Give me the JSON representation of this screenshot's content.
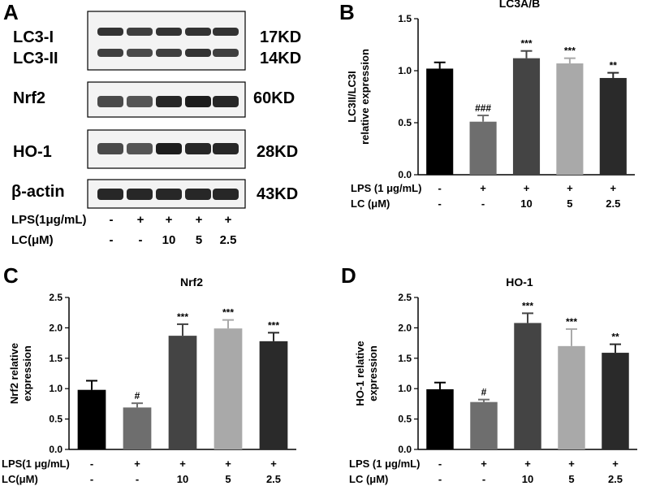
{
  "panels": {
    "a": "A",
    "b": "B",
    "c": "C",
    "d": "D"
  },
  "blots": {
    "rows": [
      {
        "label": "LC3-I",
        "kd": "17KD"
      },
      {
        "label": "LC3-II",
        "kd": "14KD"
      },
      {
        "label": "Nrf2",
        "kd": "60KD"
      },
      {
        "label": "HO-1",
        "kd": "28KD"
      },
      {
        "label": "β-actin",
        "kd": "43KD"
      }
    ],
    "lps_label": "LPS(1μg/mL)",
    "lc_label": "LC(μM)",
    "lps_values": [
      "-",
      "+",
      "+",
      "+",
      "+"
    ],
    "lc_values": [
      "-",
      "-",
      "10",
      "5",
      "2.5"
    ]
  },
  "chart_data": [
    {
      "type": "bar",
      "panel": "B",
      "title": "LC3A/B",
      "ylabel": "LC3II/LC3I\nrelative expression",
      "ylim": [
        0,
        1.5
      ],
      "yticks": [
        "0.0",
        "0.5",
        "1.0",
        "1.5"
      ],
      "categories": [
        "1",
        "2",
        "3",
        "4",
        "5"
      ],
      "values": [
        1.02,
        0.51,
        1.12,
        1.07,
        0.93
      ],
      "errors": [
        0.06,
        0.06,
        0.07,
        0.05,
        0.05
      ],
      "significance": [
        "",
        "###",
        "***",
        "***",
        "**"
      ],
      "colors": [
        "#000000",
        "#6e6e6e",
        "#444444",
        "#a9a9a9",
        "#2a2a2a"
      ],
      "row1_label": "LPS (1 μg/mL)",
      "row1": [
        "-",
        "+",
        "+",
        "+",
        "+"
      ],
      "row2_label": "LC (μM)",
      "row2": [
        "-",
        "-",
        "10",
        "5",
        "2.5"
      ]
    },
    {
      "type": "bar",
      "panel": "C",
      "title": "Nrf2",
      "ylabel": "Nrf2 relative\nexpression",
      "ylim": [
        0,
        2.5
      ],
      "yticks": [
        "0.0",
        "0.5",
        "1.0",
        "1.5",
        "2.0",
        "2.5"
      ],
      "categories": [
        "1",
        "2",
        "3",
        "4",
        "5"
      ],
      "values": [
        0.98,
        0.69,
        1.87,
        1.99,
        1.78
      ],
      "errors": [
        0.15,
        0.07,
        0.19,
        0.14,
        0.14
      ],
      "significance": [
        "",
        "#",
        "***",
        "***",
        "***"
      ],
      "colors": [
        "#000000",
        "#6e6e6e",
        "#444444",
        "#a9a9a9",
        "#2a2a2a"
      ],
      "row1_label": "LPS(1 μg/mL)",
      "row1": [
        "-",
        "+",
        "+",
        "+",
        "+"
      ],
      "row2_label": "LC(μM)",
      "row2": [
        "-",
        "-",
        "10",
        "5",
        "2.5"
      ]
    },
    {
      "type": "bar",
      "panel": "D",
      "title": "HO-1",
      "ylabel": "HO-1 relative\nexpression",
      "ylim": [
        0,
        2.5
      ],
      "yticks": [
        "0.0",
        "0.5",
        "1.0",
        "1.5",
        "2.0",
        "2.5"
      ],
      "categories": [
        "1",
        "2",
        "3",
        "4",
        "5"
      ],
      "values": [
        0.99,
        0.78,
        2.08,
        1.7,
        1.59
      ],
      "errors": [
        0.11,
        0.04,
        0.16,
        0.28,
        0.14
      ],
      "significance": [
        "",
        "#",
        "***",
        "***",
        "**"
      ],
      "colors": [
        "#000000",
        "#6e6e6e",
        "#444444",
        "#a9a9a9",
        "#2a2a2a"
      ],
      "row1_label": "LPS (1 μg/mL)",
      "row1": [
        "-",
        "+",
        "+",
        "+",
        "+"
      ],
      "row2_label": "LC (μM)",
      "row2": [
        "-",
        "-",
        "10",
        "5",
        "2.5"
      ]
    }
  ]
}
